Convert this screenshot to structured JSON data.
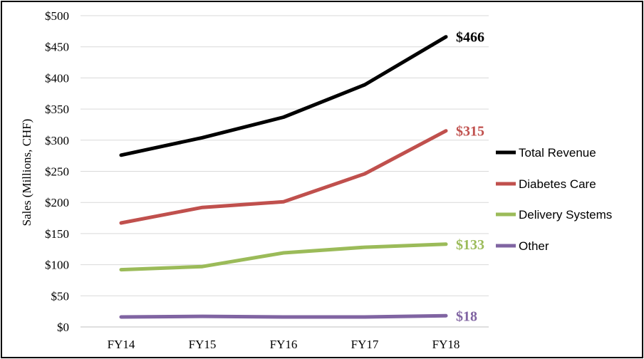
{
  "chart_data": {
    "type": "line",
    "ylabel": "Sales (Millions, CHF)",
    "xlabel": "",
    "categories": [
      "FY14",
      "FY15",
      "FY16",
      "FY17",
      "FY18"
    ],
    "ylim": [
      0,
      500
    ],
    "yticks": [
      0,
      50,
      100,
      150,
      200,
      250,
      300,
      350,
      400,
      450,
      500
    ],
    "ytick_labels": [
      "$0",
      "$50",
      "$100",
      "$150",
      "$200",
      "$250",
      "$300",
      "$350",
      "$400",
      "$450",
      "$500"
    ],
    "grid": "horizontal",
    "legend_position": "right",
    "series": [
      {
        "name": "Total Revenue",
        "color": "#000000",
        "values": [
          276,
          304,
          337,
          389,
          466
        ],
        "end_label": "$466"
      },
      {
        "name": "Diabetes Care",
        "color": "#c0504d",
        "values": [
          167,
          192,
          201,
          246,
          315
        ],
        "end_label": "$315"
      },
      {
        "name": "Delivery Systems",
        "color": "#9bbb59",
        "values": [
          92,
          97,
          119,
          128,
          133
        ],
        "end_label": "$133"
      },
      {
        "name": "Other",
        "color": "#8064a2",
        "values": [
          16,
          17,
          16,
          16,
          18
        ],
        "end_label": "$18"
      }
    ]
  }
}
